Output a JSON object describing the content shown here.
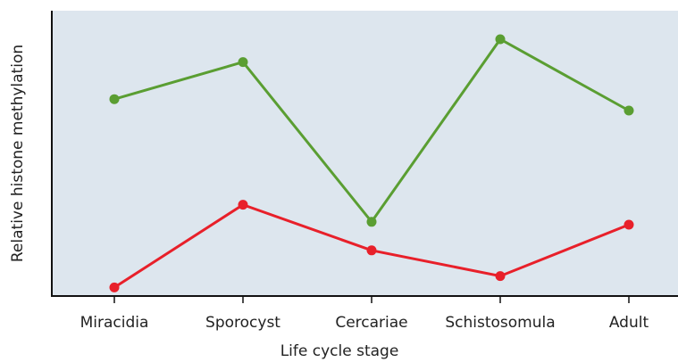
{
  "chart_data": {
    "type": "line",
    "x_label": "Life cycle stage",
    "y_label": "Relative histone methylation",
    "categories": [
      "Miracidia",
      "Sporocyst",
      "Cercariae",
      "Schistosomula",
      "Adult"
    ],
    "series": [
      {
        "color": "#5a9e32",
        "values": [
          69,
          82,
          26,
          90,
          65
        ]
      },
      {
        "color": "#e8202a",
        "values": [
          3,
          32,
          16,
          7,
          25
        ]
      }
    ],
    "ylim": [
      0,
      100
    ]
  }
}
